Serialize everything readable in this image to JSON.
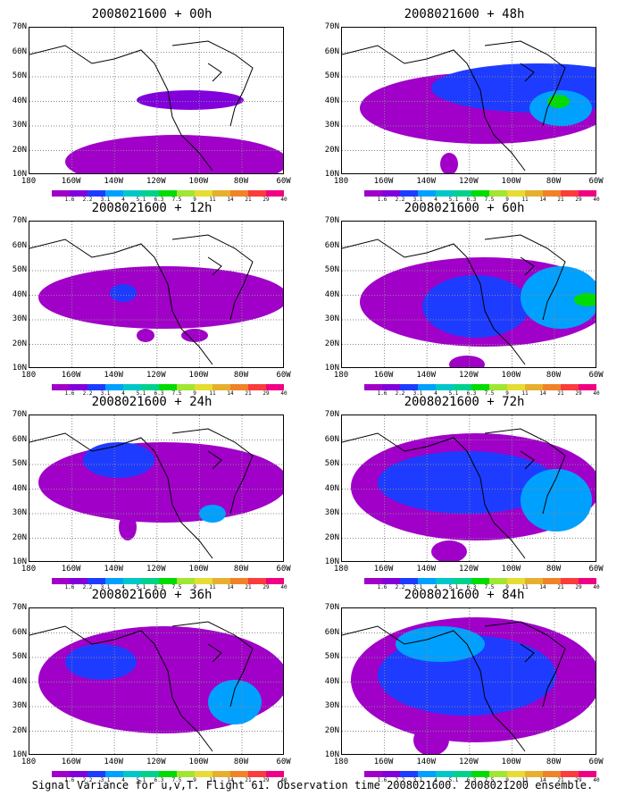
{
  "panels": [
    {
      "title": "2008021600 + 00h"
    },
    {
      "title": "2008021600 + 48h"
    },
    {
      "title": "2008021600 + 12h"
    },
    {
      "title": "2008021600 + 60h"
    },
    {
      "title": "2008021600 + 24h"
    },
    {
      "title": "2008021600 + 72h"
    },
    {
      "title": "2008021600 + 36h"
    },
    {
      "title": "2008021600 + 84h"
    }
  ],
  "lat_labels": [
    "70N",
    "60N",
    "50N",
    "40N",
    "30N",
    "20N",
    "10N"
  ],
  "lon_labels": [
    "180",
    "160W",
    "140W",
    "120W",
    "100W",
    "80W",
    "60W"
  ],
  "colorbar": {
    "colors": [
      "#a000c8",
      "#8200dc",
      "#1e3cff",
      "#00a0ff",
      "#00c8c8",
      "#00d28c",
      "#00dc00",
      "#a0e632",
      "#e6dc32",
      "#e6af2d",
      "#f08228",
      "#fa3c3c",
      "#f00082"
    ],
    "labels": [
      "1.6",
      "2.2",
      "3.1",
      "4",
      "5.1",
      "6.3",
      "7.5",
      "9",
      "11",
      "14",
      "21",
      "29",
      "40"
    ]
  },
  "caption": "Signal Variance for u,v,T. Flight 61. Observation time 2008021600. 2008021200 ensemble."
}
